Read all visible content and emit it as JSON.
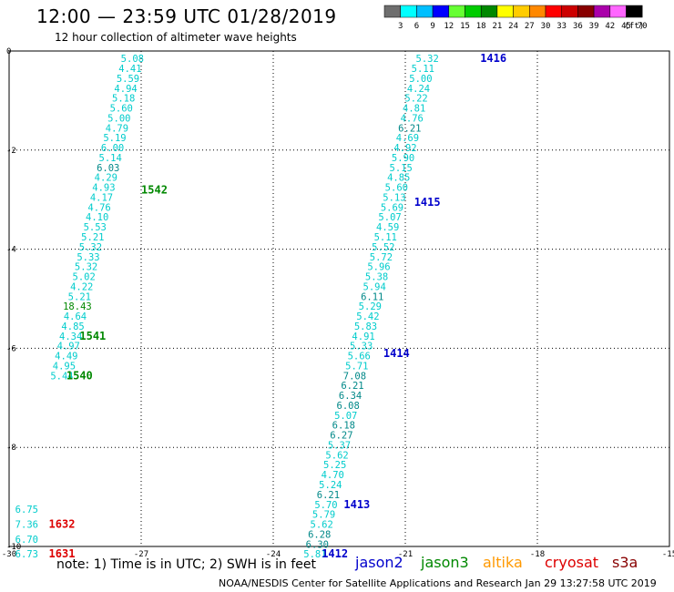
{
  "header": {
    "title": "12:00 — 23:59 UTC 01/28/2019",
    "subtitle": "12 hour collection of altimeter wave heights"
  },
  "scale": {
    "labels": [
      "3",
      "6",
      "9",
      "12",
      "15",
      "18",
      "21",
      "24",
      "27",
      "30",
      "33",
      "36",
      "39",
      "42",
      "45",
      "70"
    ],
    "unit": "(ft)",
    "colors": [
      "#6e6e6e",
      "#00ffff",
      "#00bfff",
      "#0000ff",
      "#66ff33",
      "#00cc00",
      "#008800",
      "#ffff00",
      "#ffcc00",
      "#ff8800",
      "#ff0000",
      "#cc0000",
      "#880000",
      "#aa00aa",
      "#ff66ff",
      "#000000"
    ]
  },
  "footer": {
    "note": "note:  1) Time is in UTC;  2) SWH is in feet",
    "credit": "NOAA/NESDIS Center for Satellite Applications and Research     Jan 29 13:27:58 UTC 2019",
    "satellites": [
      {
        "name": "jason2",
        "color": "#0000cc"
      },
      {
        "name": "jason3",
        "color": "#008800"
      },
      {
        "name": "altika",
        "color": "#ff9900"
      },
      {
        "name": "cryosat",
        "color": "#dd0000"
      },
      {
        "name": "s3a",
        "color": "#880000"
      }
    ]
  },
  "chart_data": {
    "type": "scatter",
    "xlim": [
      -30,
      -15
    ],
    "ylim": [
      -10,
      0
    ],
    "xticks": [
      "-30",
      "-27",
      "-24",
      "-21",
      "-18",
      "-15"
    ],
    "xtick_values": [
      -30,
      -27,
      -24,
      -21,
      -18,
      -15
    ],
    "yticks": [
      "0",
      "-2",
      "-4",
      "-6",
      "-8",
      "-10"
    ],
    "ytick_values": [
      0,
      -2,
      -4,
      -6,
      -8,
      -10
    ],
    "grid": true,
    "series": [
      {
        "name": "jason3",
        "track_color": "#00cccc",
        "points": [
          {
            "x": -27.2,
            "y": -0.15,
            "v": "5.08"
          },
          {
            "x": -27.25,
            "y": -0.35,
            "v": "4.41"
          },
          {
            "x": -27.3,
            "y": -0.55,
            "v": "5.59"
          },
          {
            "x": -27.35,
            "y": -0.75,
            "v": "4.94"
          },
          {
            "x": -27.4,
            "y": -0.95,
            "v": "5.18"
          },
          {
            "x": -27.45,
            "y": -1.15,
            "v": "5.60"
          },
          {
            "x": -27.5,
            "y": -1.35,
            "v": "5.00"
          },
          {
            "x": -27.55,
            "y": -1.55,
            "v": "4.79"
          },
          {
            "x": -27.6,
            "y": -1.75,
            "v": "5.19"
          },
          {
            "x": -27.65,
            "y": -1.95,
            "v": "6.00"
          },
          {
            "x": -27.7,
            "y": -2.15,
            "v": "5.14"
          },
          {
            "x": -27.75,
            "y": -2.35,
            "v": "6.03",
            "c": "#008888"
          },
          {
            "x": -27.8,
            "y": -2.55,
            "v": "4.29"
          },
          {
            "x": -27.85,
            "y": -2.75,
            "v": "4.93"
          },
          {
            "x": -27.9,
            "y": -2.95,
            "v": "4.17"
          },
          {
            "x": -27.95,
            "y": -3.15,
            "v": "4.76"
          },
          {
            "x": -28.0,
            "y": -3.35,
            "v": "4.10"
          },
          {
            "x": -28.05,
            "y": -3.55,
            "v": "5.53"
          },
          {
            "x": -28.1,
            "y": -3.75,
            "v": "5.21"
          },
          {
            "x": -28.15,
            "y": -3.95,
            "v": "5.32"
          },
          {
            "x": -28.2,
            "y": -4.15,
            "v": "5.33"
          },
          {
            "x": -28.25,
            "y": -4.35,
            "v": "5.32"
          },
          {
            "x": -28.3,
            "y": -4.55,
            "v": "5.02"
          },
          {
            "x": -28.35,
            "y": -4.75,
            "v": "4.22"
          },
          {
            "x": -28.4,
            "y": -4.95,
            "v": "5.21"
          },
          {
            "x": -28.45,
            "y": -5.15,
            "v": "18.43",
            "c": "#008800"
          },
          {
            "x": -28.5,
            "y": -5.35,
            "v": "4.64"
          },
          {
            "x": -28.55,
            "y": -5.55,
            "v": "4.85"
          },
          {
            "x": -28.6,
            "y": -5.75,
            "v": "4.34"
          },
          {
            "x": -28.65,
            "y": -5.95,
            "v": "4.97"
          },
          {
            "x": -28.7,
            "y": -6.15,
            "v": "4.49"
          },
          {
            "x": -28.75,
            "y": -6.35,
            "v": "4.95"
          },
          {
            "x": -28.8,
            "y": -6.55,
            "v": "5.44"
          }
        ],
        "passes": [
          {
            "x": -26.7,
            "y": -2.8,
            "label": "1542"
          },
          {
            "x": -28.1,
            "y": -5.75,
            "label": "1541"
          },
          {
            "x": -28.4,
            "y": -6.55,
            "label": "1540"
          }
        ]
      },
      {
        "name": "jason2",
        "track_color": "#00cccc",
        "points": [
          {
            "x": -20.5,
            "y": -0.15,
            "v": "5.32"
          },
          {
            "x": -20.6,
            "y": -0.35,
            "v": "5.11"
          },
          {
            "x": -20.65,
            "y": -0.55,
            "v": "5.00"
          },
          {
            "x": -20.7,
            "y": -0.75,
            "v": "4.24"
          },
          {
            "x": -20.75,
            "y": -0.95,
            "v": "5.22"
          },
          {
            "x": -20.8,
            "y": -1.15,
            "v": "4.81"
          },
          {
            "x": -20.85,
            "y": -1.35,
            "v": "4.76"
          },
          {
            "x": -20.9,
            "y": -1.55,
            "v": "6.21",
            "c": "#008888"
          },
          {
            "x": -20.95,
            "y": -1.75,
            "v": "4.69"
          },
          {
            "x": -21.0,
            "y": -1.95,
            "v": "4.92"
          },
          {
            "x": -21.05,
            "y": -2.15,
            "v": "5.90"
          },
          {
            "x": -21.1,
            "y": -2.35,
            "v": "5.15"
          },
          {
            "x": -21.15,
            "y": -2.55,
            "v": "4.85"
          },
          {
            "x": -21.2,
            "y": -2.75,
            "v": "5.60"
          },
          {
            "x": -21.25,
            "y": -2.95,
            "v": "5.13"
          },
          {
            "x": -21.3,
            "y": -3.15,
            "v": "5.69"
          },
          {
            "x": -21.35,
            "y": -3.35,
            "v": "5.07"
          },
          {
            "x": -21.4,
            "y": -3.55,
            "v": "4.59"
          },
          {
            "x": -21.45,
            "y": -3.75,
            "v": "5.11"
          },
          {
            "x": -21.5,
            "y": -3.95,
            "v": "5.52"
          },
          {
            "x": -21.55,
            "y": -4.15,
            "v": "5.72"
          },
          {
            "x": -21.6,
            "y": -4.35,
            "v": "5.96"
          },
          {
            "x": -21.65,
            "y": -4.55,
            "v": "5.38"
          },
          {
            "x": -21.7,
            "y": -4.75,
            "v": "5.94"
          },
          {
            "x": -21.75,
            "y": -4.95,
            "v": "6.11",
            "c": "#008888"
          },
          {
            "x": -21.8,
            "y": -5.15,
            "v": "5.29"
          },
          {
            "x": -21.85,
            "y": -5.35,
            "v": "5.42"
          },
          {
            "x": -21.9,
            "y": -5.55,
            "v": "5.83"
          },
          {
            "x": -21.95,
            "y": -5.75,
            "v": "4.91"
          },
          {
            "x": -22.0,
            "y": -5.95,
            "v": "5.33"
          },
          {
            "x": -22.05,
            "y": -6.15,
            "v": "5.66"
          },
          {
            "x": -22.1,
            "y": -6.35,
            "v": "5.71"
          },
          {
            "x": -22.15,
            "y": -6.55,
            "v": "7.08",
            "c": "#008888"
          },
          {
            "x": -22.2,
            "y": -6.75,
            "v": "6.21",
            "c": "#008888"
          },
          {
            "x": -22.25,
            "y": -6.95,
            "v": "6.34",
            "c": "#008888"
          },
          {
            "x": -22.3,
            "y": -7.15,
            "v": "6.08",
            "c": "#008888"
          },
          {
            "x": -22.35,
            "y": -7.35,
            "v": "5.07"
          },
          {
            "x": -22.4,
            "y": -7.55,
            "v": "6.18",
            "c": "#008888"
          },
          {
            "x": -22.45,
            "y": -7.75,
            "v": "6.27",
            "c": "#008888"
          },
          {
            "x": -22.5,
            "y": -7.95,
            "v": "5.37"
          },
          {
            "x": -22.55,
            "y": -8.15,
            "v": "5.62"
          },
          {
            "x": -22.6,
            "y": -8.35,
            "v": "5.25"
          },
          {
            "x": -22.65,
            "y": -8.55,
            "v": "4.70"
          },
          {
            "x": -22.7,
            "y": -8.75,
            "v": "5.24"
          },
          {
            "x": -22.75,
            "y": -8.95,
            "v": "6.21",
            "c": "#008888"
          },
          {
            "x": -22.8,
            "y": -9.15,
            "v": "5.70"
          },
          {
            "x": -22.85,
            "y": -9.35,
            "v": "5.79"
          },
          {
            "x": -22.9,
            "y": -9.55,
            "v": "5.62"
          },
          {
            "x": -22.95,
            "y": -9.75,
            "v": "6.28",
            "c": "#008888"
          },
          {
            "x": -23.0,
            "y": -9.95,
            "v": "6.30",
            "c": "#008888"
          },
          {
            "x": -23.05,
            "y": -10.15,
            "v": "5.81"
          }
        ],
        "passes": [
          {
            "x": -19.0,
            "y": -0.15,
            "label": "1416"
          },
          {
            "x": -20.5,
            "y": -3.05,
            "label": "1415"
          },
          {
            "x": -21.2,
            "y": -6.1,
            "label": "1414"
          },
          {
            "x": -22.1,
            "y": -9.15,
            "label": "1413"
          },
          {
            "x": -22.6,
            "y": -10.15,
            "label": "1412"
          }
        ]
      },
      {
        "name": "cryosat",
        "track_color": "#00cccc",
        "points": [
          {
            "x": -29.6,
            "y": -9.25,
            "v": "6.75"
          },
          {
            "x": -29.6,
            "y": -9.55,
            "v": "7.36"
          },
          {
            "x": -29.6,
            "y": -9.85,
            "v": "6.70"
          },
          {
            "x": -29.6,
            "y": -10.15,
            "v": "6.73"
          }
        ],
        "passes": [
          {
            "x": -28.8,
            "y": -9.55,
            "label": "1632"
          },
          {
            "x": -28.8,
            "y": -10.15,
            "label": "1631"
          }
        ]
      }
    ]
  }
}
